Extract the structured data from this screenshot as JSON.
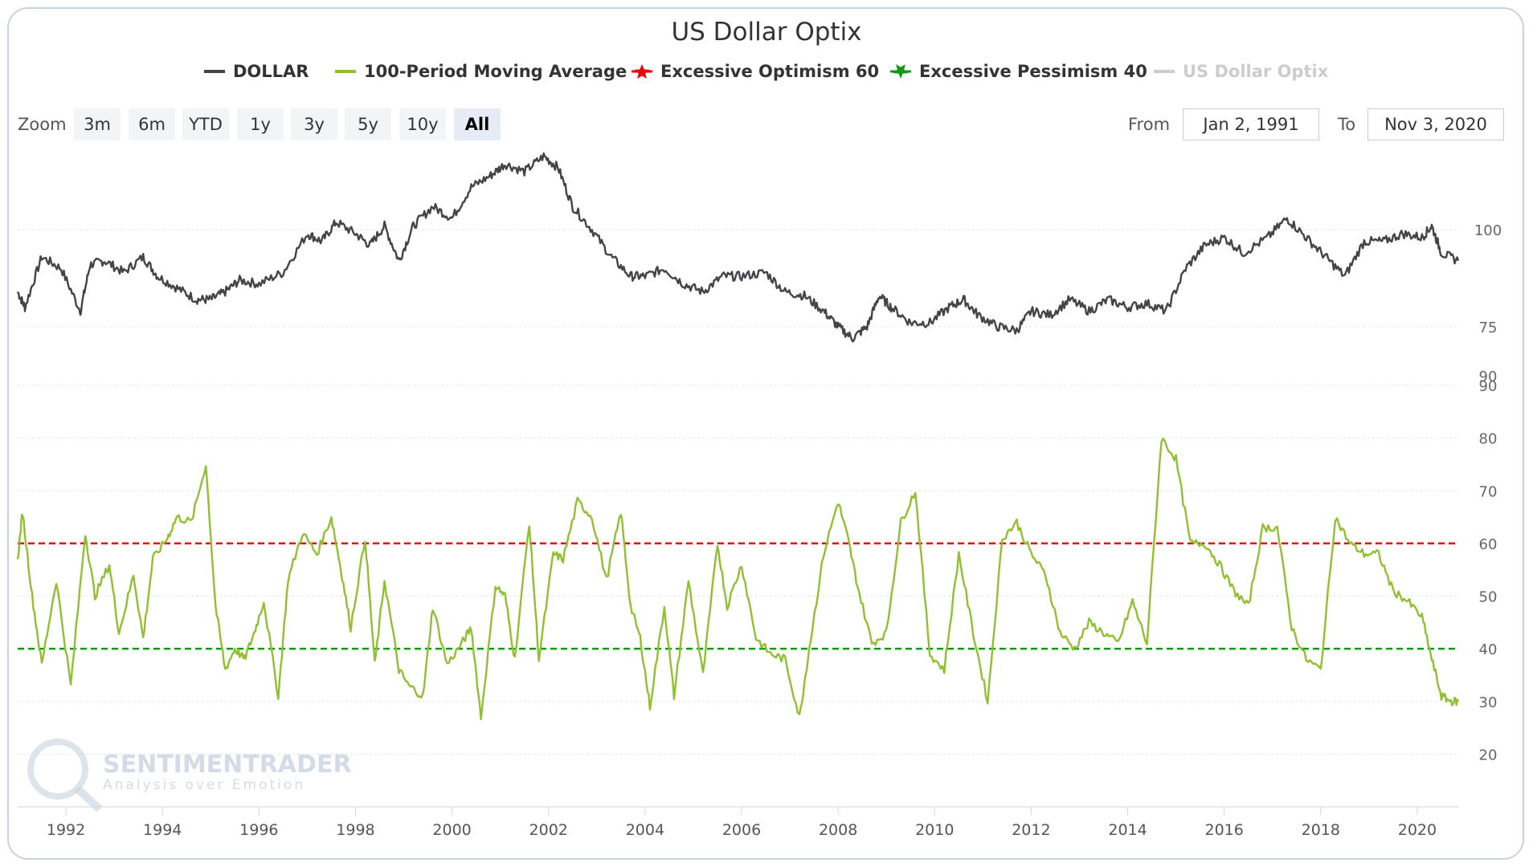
{
  "chart_data": {
    "type": "line",
    "title": "US Dollar Optix",
    "legend": [
      {
        "name": "DOLLAR",
        "color": "#434348",
        "symbol": "line",
        "enabled": true
      },
      {
        "name": "100-Period Moving Average",
        "color": "#90c030",
        "symbol": "line",
        "enabled": true
      },
      {
        "name": "Excessive Optimism 60",
        "color": "#ee0000",
        "symbol": "star",
        "enabled": true
      },
      {
        "name": "Excessive Pessimism 40",
        "color": "#119911",
        "symbol": "star",
        "enabled": true
      },
      {
        "name": "US Dollar Optix",
        "color": "#cccccc",
        "symbol": "line",
        "enabled": false
      }
    ],
    "x_range": [
      1991.0,
      2020.85
    ],
    "x_ticks": [
      "1992",
      "1994",
      "1996",
      "1998",
      "2000",
      "2002",
      "2004",
      "2006",
      "2008",
      "2010",
      "2012",
      "2014",
      "2016",
      "2018",
      "2020"
    ],
    "upper_axis": {
      "ylim": [
        64,
        122
      ],
      "ticks": [
        75,
        100
      ],
      "extra_label": "90"
    },
    "lower_axis": {
      "ylim": [
        10,
        90
      ],
      "ticks": [
        20,
        30,
        40,
        50,
        60,
        70,
        80,
        90
      ]
    },
    "dollar": {
      "x": [
        1991.0,
        1991.15,
        1991.5,
        1991.9,
        1992.3,
        1992.5,
        1992.8,
        1993.2,
        1993.6,
        1993.9,
        1994.3,
        1994.7,
        1995.0,
        1995.3,
        1995.6,
        1996.0,
        1996.5,
        1997.0,
        1997.3,
        1997.6,
        1998.0,
        1998.3,
        1998.6,
        1998.9,
        1999.2,
        1999.6,
        2000.0,
        2000.4,
        2000.8,
        2001.1,
        2001.5,
        2001.9,
        2002.2,
        2002.5,
        2002.9,
        2003.3,
        2003.7,
        2004.0,
        2004.4,
        2004.8,
        2005.2,
        2005.6,
        2006.0,
        2006.5,
        2006.9,
        2007.3,
        2007.7,
        2008.0,
        2008.3,
        2008.6,
        2008.85,
        2009.1,
        2009.5,
        2009.9,
        2010.3,
        2010.6,
        2010.9,
        2011.3,
        2011.7,
        2012.0,
        2012.4,
        2012.8,
        2013.2,
        2013.6,
        2014.0,
        2014.4,
        2014.8,
        2015.2,
        2015.6,
        2016.0,
        2016.4,
        2016.9,
        2017.3,
        2017.7,
        2018.1,
        2018.5,
        2018.9,
        2019.3,
        2019.7,
        2020.1,
        2020.3,
        2020.5,
        2020.85
      ],
      "values": [
        84,
        80,
        93,
        90,
        79,
        91,
        92,
        89,
        93,
        88,
        85,
        82,
        82,
        84,
        87,
        86,
        89,
        99,
        97,
        102,
        99,
        96,
        101,
        92,
        101,
        106,
        103,
        111,
        114,
        117,
        115,
        119,
        116,
        106,
        100,
        93,
        88,
        88,
        90,
        86,
        84,
        88,
        88,
        89,
        84,
        83,
        79,
        75,
        72,
        75,
        83,
        80,
        76,
        76,
        80,
        82,
        78,
        75,
        74,
        79,
        78,
        82,
        79,
        82,
        80,
        81,
        79,
        90,
        96,
        98,
        94,
        98,
        103,
        98,
        93,
        88,
        97,
        97,
        99,
        98,
        101,
        94,
        92
      ]
    },
    "moving_average": {
      "x": [
        1991.0,
        1991.1,
        1991.3,
        1991.5,
        1991.8,
        1992.1,
        1992.4,
        1992.6,
        1992.9,
        1993.1,
        1993.4,
        1993.6,
        1993.8,
        1994.1,
        1994.3,
        1994.6,
        1994.9,
        1995.1,
        1995.3,
        1995.5,
        1995.7,
        1995.9,
        1996.1,
        1996.4,
        1996.6,
        1996.9,
        1997.2,
        1997.5,
        1997.7,
        1997.9,
        1998.2,
        1998.4,
        1998.6,
        1998.9,
        1999.1,
        1999.4,
        1999.6,
        1999.9,
        2000.2,
        2000.4,
        2000.6,
        2000.9,
        2001.1,
        2001.3,
        2001.6,
        2001.8,
        2002.1,
        2002.3,
        2002.6,
        2002.9,
        2003.2,
        2003.5,
        2003.7,
        2003.9,
        2004.1,
        2004.4,
        2004.6,
        2004.9,
        2005.2,
        2005.5,
        2005.7,
        2006.0,
        2006.3,
        2006.6,
        2006.9,
        2007.2,
        2007.4,
        2007.7,
        2008.0,
        2008.2,
        2008.4,
        2008.7,
        2009.0,
        2009.3,
        2009.6,
        2009.9,
        2010.2,
        2010.5,
        2010.8,
        2011.1,
        2011.4,
        2011.7,
        2012.0,
        2012.3,
        2012.6,
        2012.9,
        2013.2,
        2013.5,
        2013.8,
        2014.1,
        2014.4,
        2014.7,
        2015.0,
        2015.3,
        2015.6,
        2015.9,
        2016.2,
        2016.5,
        2016.8,
        2017.1,
        2017.4,
        2017.7,
        2018.0,
        2018.3,
        2018.6,
        2018.9,
        2019.2,
        2019.5,
        2019.8,
        2020.1,
        2020.3,
        2020.5,
        2020.7,
        2020.85
      ],
      "values": [
        57,
        66,
        50,
        37,
        53,
        33,
        62,
        50,
        56,
        43,
        54,
        42,
        57,
        61,
        65,
        64,
        75,
        48,
        36,
        40,
        38,
        43,
        49,
        31,
        53,
        62,
        58,
        65,
        55,
        44,
        61,
        37,
        53,
        36,
        33,
        31,
        48,
        37,
        41,
        44,
        27,
        52,
        50,
        38,
        64,
        38,
        58,
        57,
        68,
        65,
        53,
        66,
        48,
        42,
        29,
        48,
        31,
        53,
        35,
        60,
        48,
        56,
        42,
        39,
        38,
        27,
        40,
        58,
        68,
        61,
        52,
        41,
        43,
        64,
        70,
        39,
        36,
        58,
        43,
        30,
        61,
        64,
        58,
        54,
        43,
        40,
        45,
        43,
        41,
        49,
        41,
        80,
        76,
        60,
        60,
        56,
        51,
        48,
        63,
        63,
        44,
        38,
        36,
        65,
        60,
        58,
        58,
        51,
        49,
        46,
        38,
        31,
        30,
        30
      ]
    },
    "thresholds": [
      {
        "name": "Excessive Optimism 60",
        "value": 60,
        "color": "#ee0000"
      },
      {
        "name": "Excessive Pessimism 40",
        "value": 40,
        "color": "#119911"
      }
    ]
  },
  "ui": {
    "zoom_label": "Zoom",
    "zoom_buttons": [
      "3m",
      "6m",
      "YTD",
      "1y",
      "3y",
      "5y",
      "10y",
      "All"
    ],
    "zoom_active": "All",
    "from_label": "From",
    "from_value": "Jan 2, 1991",
    "to_label": "To",
    "to_value": "Nov 3, 2020"
  },
  "watermark": {
    "name": "SENTIMENTRADER",
    "tagline": "Analysis over Emotion"
  }
}
